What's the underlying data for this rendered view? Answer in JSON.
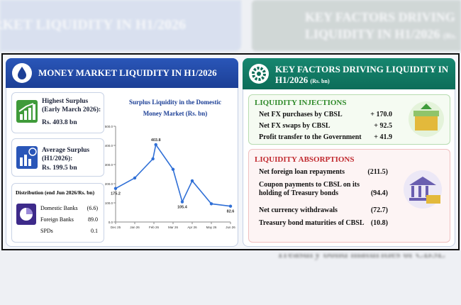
{
  "left_panel": {
    "title": "MONEY MARKET LIQUIDITY IN H1/2026",
    "highest": {
      "label": "Highest Surplus (Early March 2026):",
      "value": "Rs. 403.8 bn"
    },
    "average": {
      "label": "Average Surplus (H1/2026):",
      "value": "Rs. 199.5 bn"
    },
    "distribution": {
      "title": "Distribution (end Jun 2026/Rs. bn)",
      "rows": [
        [
          "Domestic Banks",
          "(6.6)"
        ],
        [
          "Foreign Banks",
          "89.0"
        ],
        [
          "SPDs",
          "0.1"
        ]
      ]
    }
  },
  "chart_data": {
    "type": "line",
    "title": "Surplus Liquidity in the Domestic Money Market (Rs. bn)",
    "x": [
      0,
      1,
      1.95,
      2.1,
      3,
      3.48,
      4,
      5,
      6
    ],
    "values": [
      175.2,
      230,
      330,
      403.8,
      275,
      105.4,
      215,
      95,
      82.6
    ],
    "value_labels": [
      "175.2",
      null,
      null,
      "403.8",
      null,
      "105.4",
      null,
      null,
      "82.6"
    ],
    "color": "#2f6fd6",
    "xlim": [
      0,
      6
    ],
    "xticks": [
      {
        "value": 0,
        "label": "Dec 25"
      },
      {
        "value": 1,
        "label": "Jan 26"
      },
      {
        "value": 2,
        "label": "Feb 26"
      },
      {
        "value": 3,
        "label": "Mar 26"
      },
      {
        "value": 4,
        "label": "Apr 26"
      },
      {
        "value": 5,
        "label": "May 26"
      },
      {
        "value": 6,
        "label": "Jun 26"
      }
    ],
    "ylim": [
      0,
      500
    ],
    "yticks": [
      {
        "value": 0,
        "label": "0.0"
      },
      {
        "value": 100,
        "label": "100.0"
      },
      {
        "value": 200,
        "label": "200.0"
      },
      {
        "value": 300,
        "label": "300.0"
      },
      {
        "value": 400,
        "label": "400.0"
      },
      {
        "value": 500,
        "label": "500.0"
      }
    ]
  },
  "right_panel": {
    "title": "KEY FACTORS DRIVING LIQUIDITY IN H1/2026",
    "unit": "(Rs. bn)",
    "injections": {
      "title": "LIQUIDITY INJECTIONS",
      "rows": [
        [
          "Net FX purchases by CBSL",
          "+ 170.0"
        ],
        [
          "Net FX swaps by CBSL",
          "+ 92.5"
        ],
        [
          "Profit transfer to the Government",
          "+ 41.9"
        ]
      ]
    },
    "absorptions": {
      "title": "LIQUIDITY ABSORPTIONS",
      "rows": [
        [
          "Net foreign loan repayments",
          "(211.5)"
        ],
        [
          "Coupon payments to CBSL on its holding of Treasury bonds",
          "(94.4)"
        ],
        [
          "Net currency withdrawals",
          "(72.7)"
        ],
        [
          "Treasury bond maturities of CBSL",
          "(10.8)"
        ]
      ]
    }
  }
}
